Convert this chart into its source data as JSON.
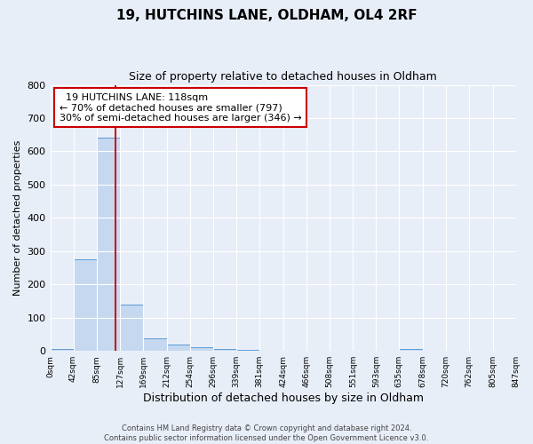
{
  "title": "19, HUTCHINS LANE, OLDHAM, OL4 2RF",
  "subtitle": "Size of property relative to detached houses in Oldham",
  "xlabel": "Distribution of detached houses by size in Oldham",
  "ylabel": "Number of detached properties",
  "bar_color": "#c5d8f0",
  "bar_edge_color": "#5b9bd5",
  "bar_values": [
    5,
    275,
    640,
    140,
    37,
    20,
    12,
    5,
    3,
    1,
    0,
    0,
    0,
    0,
    0,
    5,
    0,
    0,
    0,
    0
  ],
  "bin_edges": [
    0,
    42,
    85,
    127,
    169,
    212,
    254,
    296,
    339,
    381,
    424,
    466,
    508,
    551,
    593,
    635,
    678,
    720,
    762,
    805,
    847
  ],
  "tick_labels": [
    "0sqm",
    "42sqm",
    "85sqm",
    "127sqm",
    "169sqm",
    "212sqm",
    "254sqm",
    "296sqm",
    "339sqm",
    "381sqm",
    "424sqm",
    "466sqm",
    "508sqm",
    "551sqm",
    "593sqm",
    "635sqm",
    "678sqm",
    "720sqm",
    "762sqm",
    "805sqm",
    "847sqm"
  ],
  "property_line_x": 118,
  "property_line_color": "#cc0000",
  "ylim": [
    0,
    800
  ],
  "yticks": [
    0,
    100,
    200,
    300,
    400,
    500,
    600,
    700,
    800
  ],
  "annotation_text": "  19 HUTCHINS LANE: 118sqm  \n← 70% of detached houses are smaller (797)\n30% of semi-detached houses are larger (346) →",
  "annotation_box_color": "#ffffff",
  "annotation_box_edge_color": "#cc0000",
  "footnote1": "Contains HM Land Registry data © Crown copyright and database right 2024.",
  "footnote2": "Contains public sector information licensed under the Open Government Licence v3.0.",
  "background_color": "#e8eef8",
  "grid_color": "#ffffff"
}
